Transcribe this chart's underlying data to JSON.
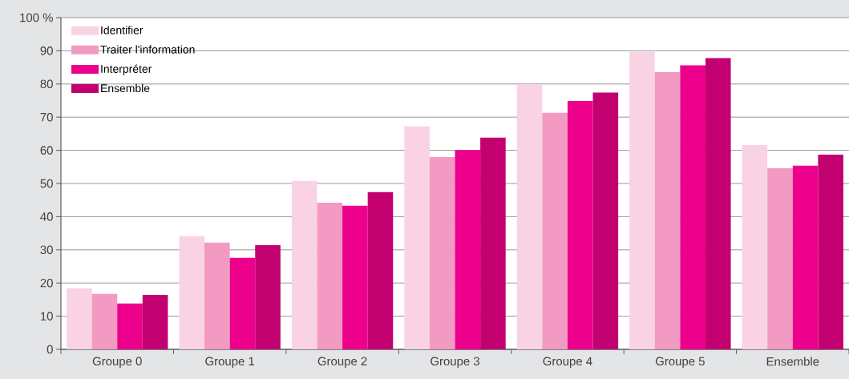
{
  "chart_data": {
    "type": "bar",
    "categories": [
      "Groupe 0",
      "Groupe 1",
      "Groupe 2",
      "Groupe 3",
      "Groupe 4",
      "Groupe 5",
      "Ensemble"
    ],
    "series": [
      {
        "name": "Identifier",
        "color": "#f9d3e4",
        "values": [
          18.4,
          34.1,
          50.8,
          67.2,
          79.9,
          89.7,
          61.6
        ]
      },
      {
        "name": "Traiter l'information",
        "color": "#f39ac3",
        "values": [
          16.7,
          32.2,
          44.2,
          58.0,
          71.3,
          83.6,
          54.6
        ]
      },
      {
        "name": "Interpréter",
        "color": "#ec008c",
        "values": [
          13.8,
          27.6,
          43.3,
          60.1,
          74.9,
          85.6,
          55.4
        ]
      },
      {
        "name": "Ensemble",
        "color": "#c3006f",
        "values": [
          16.4,
          31.4,
          47.4,
          63.8,
          77.4,
          87.8,
          58.7
        ]
      }
    ],
    "ylim": [
      0,
      100
    ],
    "yticks": [
      0,
      10,
      20,
      30,
      40,
      50,
      60,
      70,
      80,
      90,
      {
        "value": 100,
        "label": "100 %"
      }
    ],
    "grid": "y",
    "legend": "top left"
  }
}
